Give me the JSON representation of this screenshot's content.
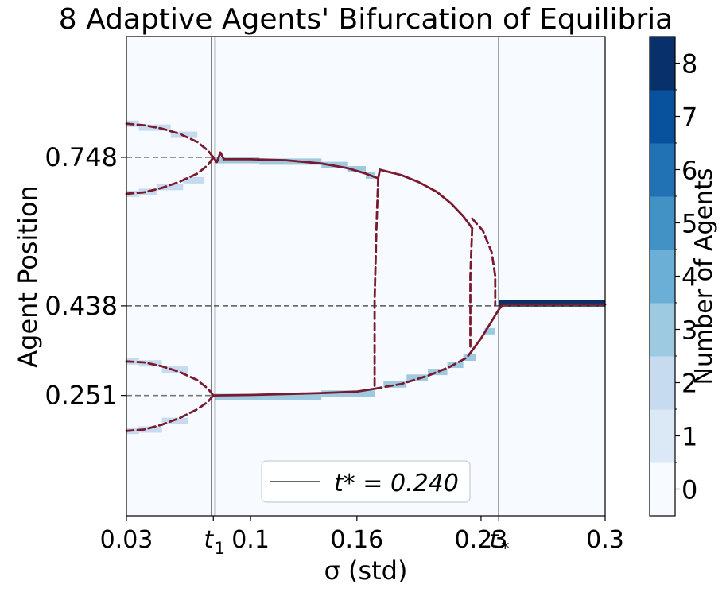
{
  "chart_data": {
    "type": "heatmap",
    "title": "8 Adaptive Agents' Bifurcation of Equilibria",
    "xlabel": "σ (std)",
    "ylabel": "Agent Position",
    "xlim": [
      0.03,
      0.3
    ],
    "ylim": [
      0.0,
      1.0
    ],
    "x_ticks": [
      {
        "value": 0.03,
        "label": "0.03"
      },
      {
        "value": 0.1,
        "label": "0.1"
      },
      {
        "value": 0.16,
        "label": "0.16"
      },
      {
        "value": 0.23,
        "label": "0.23"
      },
      {
        "value": 0.3,
        "label": "0.3"
      }
    ],
    "x_marker_ticks": [
      {
        "value": 0.079,
        "label": "t",
        "sub": "1"
      },
      {
        "value": 0.24,
        "label": "t",
        "sub": "*"
      }
    ],
    "y_ticks": [
      {
        "value": 0.251,
        "label": "0.251"
      },
      {
        "value": 0.438,
        "label": "0.438"
      },
      {
        "value": 0.748,
        "label": "0.748"
      }
    ],
    "vlines": [
      0.078,
      0.08,
      0.24
    ],
    "hlines": [
      {
        "value": 0.748,
        "xmax": 0.08,
        "color": "#777777"
      },
      {
        "value": 0.438,
        "xmax": 0.3,
        "color": "#555555"
      },
      {
        "value": 0.251,
        "xmax": 0.08,
        "color": "#777777"
      }
    ],
    "legend": {
      "position": "bottom-center",
      "label": "t* = 0.240"
    },
    "colorbar": {
      "label": "Number of Agents",
      "levels": [
        0,
        1,
        2,
        3,
        4,
        5,
        6,
        7,
        8
      ],
      "colors": [
        "#f7fbff",
        "#dbe9f6",
        "#c6dbef",
        "#9ecae1",
        "#6baed6",
        "#4292c6",
        "#2171b5",
        "#08519c",
        "#08306b"
      ]
    },
    "background_level": 0,
    "occupancy_segments": [
      {
        "x0": 0.03,
        "x1": 0.037,
        "y": 0.818,
        "level": 2
      },
      {
        "x0": 0.037,
        "x1": 0.055,
        "y": 0.81,
        "level": 2
      },
      {
        "x0": 0.055,
        "x1": 0.07,
        "y": 0.795,
        "level": 2
      },
      {
        "x0": 0.03,
        "x1": 0.037,
        "y": 0.672,
        "level": 2
      },
      {
        "x0": 0.037,
        "x1": 0.047,
        "y": 0.676,
        "level": 2
      },
      {
        "x0": 0.047,
        "x1": 0.062,
        "y": 0.686,
        "level": 2
      },
      {
        "x0": 0.062,
        "x1": 0.074,
        "y": 0.7,
        "level": 2
      },
      {
        "x0": 0.08,
        "x1": 0.105,
        "y": 0.742,
        "level": 3
      },
      {
        "x0": 0.105,
        "x1": 0.14,
        "y": 0.739,
        "level": 3
      },
      {
        "x0": 0.14,
        "x1": 0.155,
        "y": 0.732,
        "level": 3
      },
      {
        "x0": 0.155,
        "x1": 0.165,
        "y": 0.723,
        "level": 3
      },
      {
        "x0": 0.165,
        "x1": 0.17,
        "y": 0.71,
        "level": 3
      },
      {
        "x0": 0.03,
        "x1": 0.037,
        "y": 0.322,
        "level": 2
      },
      {
        "x0": 0.037,
        "x1": 0.05,
        "y": 0.318,
        "level": 2
      },
      {
        "x0": 0.05,
        "x1": 0.065,
        "y": 0.305,
        "level": 2
      },
      {
        "x0": 0.03,
        "x1": 0.037,
        "y": 0.177,
        "level": 2
      },
      {
        "x0": 0.037,
        "x1": 0.05,
        "y": 0.18,
        "level": 2
      },
      {
        "x0": 0.05,
        "x1": 0.065,
        "y": 0.198,
        "level": 2
      },
      {
        "x0": 0.08,
        "x1": 0.14,
        "y": 0.248,
        "level": 3
      },
      {
        "x0": 0.14,
        "x1": 0.17,
        "y": 0.255,
        "level": 3
      },
      {
        "x0": 0.175,
        "x1": 0.188,
        "y": 0.274,
        "level": 3
      },
      {
        "x0": 0.188,
        "x1": 0.2,
        "y": 0.288,
        "level": 3
      },
      {
        "x0": 0.2,
        "x1": 0.211,
        "y": 0.3,
        "level": 3
      },
      {
        "x0": 0.211,
        "x1": 0.22,
        "y": 0.315,
        "level": 3
      },
      {
        "x0": 0.22,
        "x1": 0.227,
        "y": 0.33,
        "level": 3
      },
      {
        "x0": 0.232,
        "x1": 0.238,
        "y": 0.385,
        "level": 3
      },
      {
        "x0": 0.24,
        "x1": 0.3,
        "y": 0.443,
        "level": 8
      }
    ],
    "curve_color": "#7a1a2e",
    "curves": [
      {
        "style": "dashed",
        "points": [
          [
            0.03,
            0.818
          ],
          [
            0.04,
            0.815
          ],
          [
            0.05,
            0.808
          ],
          [
            0.06,
            0.797
          ],
          [
            0.07,
            0.78
          ],
          [
            0.076,
            0.762
          ],
          [
            0.079,
            0.748
          ]
        ]
      },
      {
        "style": "dashed",
        "points": [
          [
            0.03,
            0.672
          ],
          [
            0.04,
            0.675
          ],
          [
            0.05,
            0.684
          ],
          [
            0.06,
            0.697
          ],
          [
            0.07,
            0.714
          ],
          [
            0.076,
            0.732
          ],
          [
            0.079,
            0.748
          ]
        ]
      },
      {
        "style": "solid",
        "points": [
          [
            0.079,
            0.748
          ],
          [
            0.081,
            0.738
          ],
          [
            0.083,
            0.758
          ],
          [
            0.085,
            0.744
          ]
        ]
      },
      {
        "style": "solid",
        "points": [
          [
            0.085,
            0.744
          ],
          [
            0.1,
            0.744
          ],
          [
            0.12,
            0.742
          ],
          [
            0.14,
            0.735
          ],
          [
            0.155,
            0.725
          ],
          [
            0.165,
            0.714
          ],
          [
            0.172,
            0.704
          ],
          [
            0.173,
            0.722
          ]
        ]
      },
      {
        "style": "solid",
        "points": [
          [
            0.173,
            0.722
          ],
          [
            0.185,
            0.711
          ],
          [
            0.195,
            0.696
          ],
          [
            0.205,
            0.676
          ],
          [
            0.213,
            0.652
          ],
          [
            0.22,
            0.625
          ],
          [
            0.225,
            0.6
          ]
        ]
      },
      {
        "style": "dashed",
        "points": [
          [
            0.172,
            0.704
          ],
          [
            0.171,
            0.6
          ],
          [
            0.17,
            0.45
          ],
          [
            0.17,
            0.265
          ]
        ]
      },
      {
        "style": "dashed",
        "points": [
          [
            0.03,
            0.322
          ],
          [
            0.04,
            0.32
          ],
          [
            0.05,
            0.312
          ],
          [
            0.06,
            0.3
          ],
          [
            0.07,
            0.283
          ],
          [
            0.076,
            0.265
          ],
          [
            0.079,
            0.251
          ]
        ]
      },
      {
        "style": "dashed",
        "points": [
          [
            0.03,
            0.177
          ],
          [
            0.04,
            0.18
          ],
          [
            0.05,
            0.19
          ],
          [
            0.06,
            0.204
          ],
          [
            0.07,
            0.222
          ],
          [
            0.076,
            0.238
          ],
          [
            0.079,
            0.251
          ]
        ]
      },
      {
        "style": "solid",
        "points": [
          [
            0.079,
            0.251
          ],
          [
            0.1,
            0.252
          ],
          [
            0.12,
            0.254
          ],
          [
            0.14,
            0.256
          ],
          [
            0.16,
            0.259
          ],
          [
            0.17,
            0.265
          ]
        ]
      },
      {
        "style": "dashed",
        "points": [
          [
            0.17,
            0.265
          ],
          [
            0.185,
            0.275
          ],
          [
            0.2,
            0.292
          ],
          [
            0.212,
            0.31
          ],
          [
            0.222,
            0.33
          ],
          [
            0.225,
            0.345
          ]
        ]
      },
      {
        "style": "dashed",
        "points": [
          [
            0.225,
            0.6
          ],
          [
            0.224,
            0.5
          ],
          [
            0.224,
            0.345
          ]
        ]
      },
      {
        "style": "dashed",
        "points": [
          [
            0.225,
            0.62
          ],
          [
            0.231,
            0.595
          ],
          [
            0.236,
            0.55
          ],
          [
            0.238,
            0.5
          ],
          [
            0.238,
            0.44
          ]
        ]
      },
      {
        "style": "solid",
        "points": [
          [
            0.225,
            0.345
          ],
          [
            0.23,
            0.37
          ],
          [
            0.235,
            0.4
          ],
          [
            0.24,
            0.43
          ],
          [
            0.242,
            0.44
          ]
        ]
      },
      {
        "style": "solid",
        "points": [
          [
            0.242,
            0.441
          ],
          [
            0.3,
            0.441
          ]
        ]
      }
    ]
  }
}
